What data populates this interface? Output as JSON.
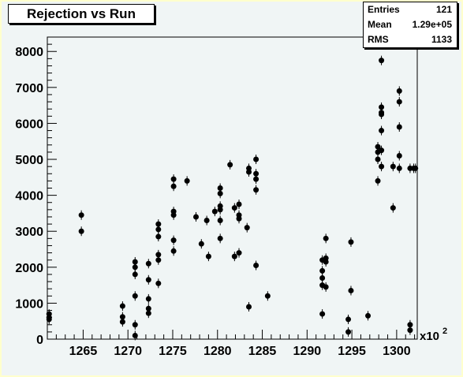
{
  "title": "Rejection vs Run",
  "stats": [
    {
      "key": "Entries",
      "value": "121"
    },
    {
      "key": "Mean",
      "value": "1.29e+05"
    },
    {
      "key": "RMS",
      "value": "1133"
    }
  ],
  "x_exponent_base": "x10",
  "x_exponent_power": "2",
  "chart_data": {
    "type": "scatter",
    "title": "Rejection vs Run",
    "xlim": [
      1261,
      1302.3
    ],
    "ylim": [
      0,
      8400
    ],
    "x_ticks": [
      1265,
      1270,
      1275,
      1280,
      1285,
      1290,
      1295,
      1300
    ],
    "y_ticks": [
      0,
      1000,
      2000,
      3000,
      4000,
      5000,
      6000,
      7000,
      8000
    ],
    "x_multiplier": "x10^2",
    "points": [
      [
        1261.2,
        700
      ],
      [
        1261.2,
        600
      ],
      [
        1261.2,
        550
      ],
      [
        1264.8,
        3450
      ],
      [
        1264.8,
        3000
      ],
      [
        1269.4,
        920
      ],
      [
        1269.4,
        620
      ],
      [
        1269.4,
        480
      ],
      [
        1270.8,
        2150
      ],
      [
        1270.8,
        2000
      ],
      [
        1270.8,
        1800
      ],
      [
        1270.8,
        1200
      ],
      [
        1270.8,
        400
      ],
      [
        1270.8,
        100
      ],
      [
        1272.3,
        2100
      ],
      [
        1272.3,
        1650
      ],
      [
        1272.3,
        1120
      ],
      [
        1272.3,
        850
      ],
      [
        1272.3,
        720
      ],
      [
        1273.4,
        3200
      ],
      [
        1273.4,
        3050
      ],
      [
        1273.4,
        2850
      ],
      [
        1273.4,
        2350
      ],
      [
        1273.4,
        2200
      ],
      [
        1273.4,
        1550
      ],
      [
        1275.1,
        4450
      ],
      [
        1275.1,
        4250
      ],
      [
        1275.1,
        3550
      ],
      [
        1275.1,
        3450
      ],
      [
        1275.1,
        2750
      ],
      [
        1275.1,
        2450
      ],
      [
        1276.6,
        4400
      ],
      [
        1277.6,
        3400
      ],
      [
        1278.2,
        2650
      ],
      [
        1278.8,
        3300
      ],
      [
        1279.0,
        2300
      ],
      [
        1279.7,
        3550
      ],
      [
        1280.3,
        4200
      ],
      [
        1280.3,
        4050
      ],
      [
        1280.3,
        3700
      ],
      [
        1280.3,
        3600
      ],
      [
        1280.3,
        3300
      ],
      [
        1280.3,
        2800
      ],
      [
        1281.4,
        4850
      ],
      [
        1281.9,
        3650
      ],
      [
        1281.9,
        2300
      ],
      [
        1282.4,
        3750
      ],
      [
        1282.4,
        3450
      ],
      [
        1282.4,
        3350
      ],
      [
        1282.4,
        2400
      ],
      [
        1283.3,
        3100
      ],
      [
        1283.5,
        4650
      ],
      [
        1283.5,
        4750
      ],
      [
        1283.5,
        900
      ],
      [
        1284.3,
        5000
      ],
      [
        1284.3,
        4600
      ],
      [
        1284.3,
        4450
      ],
      [
        1284.3,
        4150
      ],
      [
        1284.3,
        2050
      ],
      [
        1285.6,
        1200
      ],
      [
        1291.7,
        2200
      ],
      [
        1291.7,
        1900
      ],
      [
        1291.7,
        1700
      ],
      [
        1291.7,
        1500
      ],
      [
        1291.7,
        700
      ],
      [
        1292.1,
        2800
      ],
      [
        1292.1,
        2250
      ],
      [
        1292.1,
        2150
      ],
      [
        1292.1,
        1450
      ],
      [
        1294.6,
        550
      ],
      [
        1294.6,
        200
      ],
      [
        1294.9,
        2700
      ],
      [
        1294.9,
        1350
      ],
      [
        1296.8,
        650
      ],
      [
        1297.9,
        5350
      ],
      [
        1297.9,
        5200
      ],
      [
        1297.9,
        5000
      ],
      [
        1297.9,
        4400
      ],
      [
        1298.3,
        7750
      ],
      [
        1298.3,
        6450
      ],
      [
        1298.3,
        6300
      ],
      [
        1298.3,
        6250
      ],
      [
        1298.3,
        5800
      ],
      [
        1298.3,
        5250
      ],
      [
        1298.3,
        4800
      ],
      [
        1299.6,
        4800
      ],
      [
        1299.6,
        3650
      ],
      [
        1300.3,
        6900
      ],
      [
        1300.3,
        6600
      ],
      [
        1300.3,
        5900
      ],
      [
        1300.3,
        5100
      ],
      [
        1300.3,
        4750
      ],
      [
        1301.5,
        4750
      ],
      [
        1301.5,
        400
      ],
      [
        1301.5,
        250
      ],
      [
        1301.9,
        4750
      ],
      [
        1302.1,
        4750
      ]
    ]
  }
}
